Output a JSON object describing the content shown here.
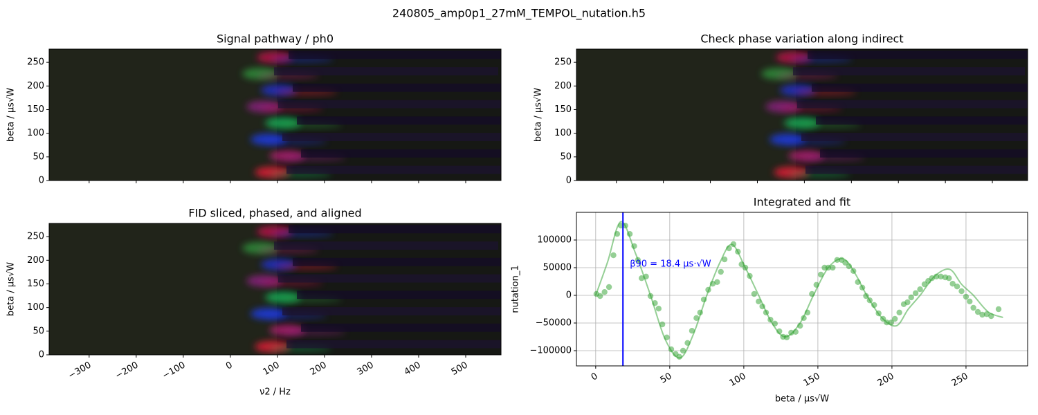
{
  "title": "240805_amp0p1_27mM_TEMPOL_nutation.h5",
  "chart_data": [
    {
      "type": "image",
      "title": "Signal pathway / ph0",
      "y_label": "beta / μs√W",
      "ylim": [
        0,
        278
      ],
      "yticks": [
        0,
        50,
        100,
        150,
        200,
        250
      ]
    },
    {
      "type": "image",
      "title": "Check phase variation along indirect",
      "y_label": "beta / μs√W",
      "ylim": [
        0,
        278
      ],
      "yticks": [
        0,
        50,
        100,
        150,
        200,
        250
      ]
    },
    {
      "type": "image",
      "title": "FID sliced, phased, and aligned",
      "y_label": "beta / μs√W",
      "x_label": "ν2 / Hz",
      "ylim": [
        0,
        278
      ],
      "yticks": [
        0,
        50,
        100,
        150,
        200,
        250
      ],
      "xlim": [
        -385,
        575
      ],
      "xticks": [
        {
          "value": -300,
          "label": "−300"
        },
        {
          "value": -200,
          "label": "−200"
        },
        {
          "value": -100,
          "label": "−100"
        },
        0,
        100,
        200,
        300,
        400,
        500
      ]
    },
    {
      "type": "scatter",
      "title": "Integrated and fit",
      "x_label": "beta / μs√W",
      "y_label": "nutation_1",
      "grid": true,
      "xlim": [
        -13,
        291.6
      ],
      "xticks": [
        0,
        50,
        100,
        150,
        200,
        250
      ],
      "ylim": [
        -127500,
        150000
      ],
      "yticks": [
        {
          "value": -100000,
          "label": "−100000"
        },
        {
          "value": -50000,
          "label": "−50000"
        },
        0,
        50000,
        100000
      ],
      "vline": {
        "value": 18.4,
        "color": "#0000ff"
      },
      "annotation": "β90 = 18.4 μs·√W",
      "series": [
        {
          "type": "scatter",
          "color": "#2ca02c",
          "x": [
            0.5,
            3,
            6,
            9,
            12,
            14.5,
            17,
            20,
            23,
            26,
            28.5,
            31,
            34,
            37,
            40,
            42.5,
            45,
            48,
            51,
            54,
            56.5,
            59,
            62,
            65,
            68,
            70.5,
            73,
            76,
            79,
            82,
            84.5,
            87,
            90,
            93,
            96,
            98.5,
            101,
            104,
            107,
            110,
            112.5,
            115,
            118,
            121,
            124,
            126.5,
            129,
            132,
            135,
            138,
            140.5,
            143,
            146,
            149,
            152,
            154.5,
            157,
            160,
            163,
            166,
            168.5,
            171,
            174,
            177,
            180,
            182.5,
            185,
            188,
            191,
            194,
            196.5,
            199.5,
            202,
            205,
            208,
            210.5,
            213,
            216,
            219,
            222,
            224.5,
            227,
            230,
            233,
            236,
            238.5,
            241,
            244,
            247,
            250,
            252.5,
            255,
            258,
            261,
            264,
            267,
            272
          ],
          "values": [
            2500,
            -1250,
            6000,
            15000,
            72500,
            111000,
            126000,
            126000,
            111000,
            89000,
            64000,
            31000,
            34000,
            -1250,
            -14000,
            -24000,
            -52500,
            -76000,
            -97500,
            -106000,
            -111000,
            -100000,
            -86000,
            -64000,
            -41000,
            -31000,
            -7500,
            10000,
            21000,
            24000,
            42500,
            65000,
            85000,
            92500,
            79000,
            56000,
            50000,
            35000,
            2500,
            -11000,
            -20000,
            -31000,
            -44000,
            -51000,
            -65000,
            -75000,
            -76000,
            -67500,
            -66000,
            -55000,
            -41000,
            -31000,
            2500,
            19000,
            37500,
            50000,
            50000,
            50000,
            64000,
            64000,
            59000,
            52500,
            44000,
            24000,
            14000,
            -1250,
            -9000,
            -17500,
            -32500,
            -42500,
            -49000,
            -49000,
            -42500,
            -31000,
            -16000,
            -12500,
            -3750,
            4000,
            11000,
            20000,
            26000,
            31000,
            34000,
            34000,
            32500,
            31000,
            21000,
            16000,
            7500,
            -2500,
            -11000,
            -22500,
            -30000,
            -35000,
            -34000,
            -37500,
            -25000
          ]
        },
        {
          "type": "line",
          "color": "#2ca02c",
          "x": [
            0,
            8,
            17,
            27,
            37,
            47,
            57,
            66,
            75,
            84,
            92,
            101,
            110,
            119,
            128,
            138,
            147,
            157,
            167,
            175,
            183,
            193,
            203,
            211,
            219,
            229,
            239,
            247,
            255,
            265,
            275
          ],
          "values": [
            0,
            60000,
            133000,
            75000,
            0,
            -80000,
            -113000,
            -70000,
            0,
            60000,
            92000,
            50000,
            0,
            -50000,
            -75000,
            -50000,
            0,
            50000,
            66000,
            40000,
            0,
            -40000,
            -55000,
            -25000,
            0,
            35000,
            47000,
            20000,
            0,
            -30000,
            -40000
          ]
        }
      ]
    }
  ]
}
